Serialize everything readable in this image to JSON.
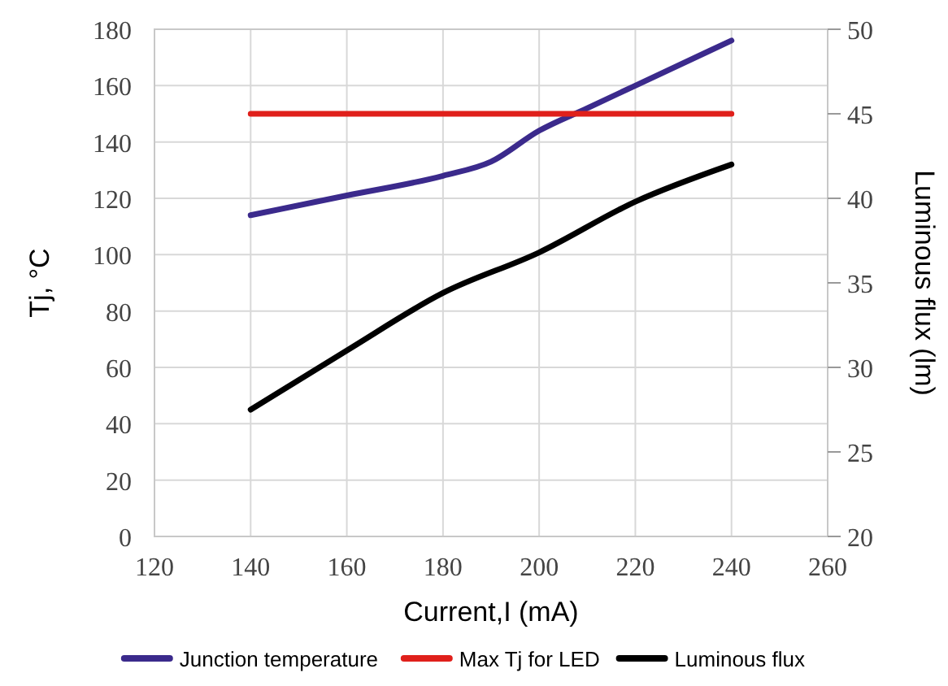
{
  "chart_data": {
    "type": "line",
    "xlabel": "Current,I (mA)",
    "ylabel": "Tj, °C",
    "y2label": "Luminous flux (lm)",
    "xlim": [
      120,
      260
    ],
    "xticks": [
      120,
      140,
      160,
      180,
      200,
      220,
      240,
      260
    ],
    "ylim": [
      0,
      180
    ],
    "yticks": [
      0,
      20,
      40,
      60,
      80,
      100,
      120,
      140,
      160,
      180
    ],
    "y2lim": [
      20,
      50
    ],
    "y2ticks": [
      20,
      25,
      30,
      35,
      40,
      45,
      50
    ],
    "grid": true,
    "legend": "bottom",
    "marker": "none",
    "line_style": "solid",
    "series": [
      {
        "name": "Junction temperature",
        "color": "#3b2a8c",
        "x": [
          140,
          160,
          180,
          190,
          200,
          210,
          220,
          240
        ],
        "values": [
          114,
          121,
          128,
          133,
          144,
          152,
          160,
          176
        ]
      },
      {
        "name": "Max Tj for LED",
        "color": "#e0201b",
        "x": [
          140,
          240
        ],
        "values": [
          150,
          150
        ]
      },
      {
        "name": "Luminous flux",
        "color": "#000000",
        "axis": "y2",
        "x": [
          140,
          160,
          180,
          200,
          220,
          240
        ],
        "values": [
          27.5,
          31,
          34.4,
          36.8,
          39.8,
          42
        ]
      }
    ]
  }
}
